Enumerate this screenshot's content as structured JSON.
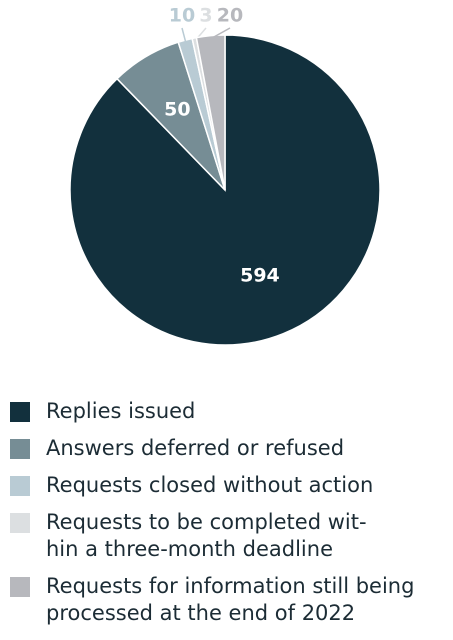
{
  "chart_data": {
    "type": "pie",
    "categories": [
      "Replies issued",
      "Answers deferred or refused",
      "Requests closed without action",
      "Requests to be completed wit-\nhin a three-month deadline",
      "Requests for information still being\nprocessed at the end of 2022"
    ],
    "values": [
      594,
      50,
      10,
      3,
      20
    ],
    "colors": [
      "#12303d",
      "#768d95",
      "#b9cbd4",
      "#dcdfe1",
      "#b7b8bd"
    ]
  }
}
